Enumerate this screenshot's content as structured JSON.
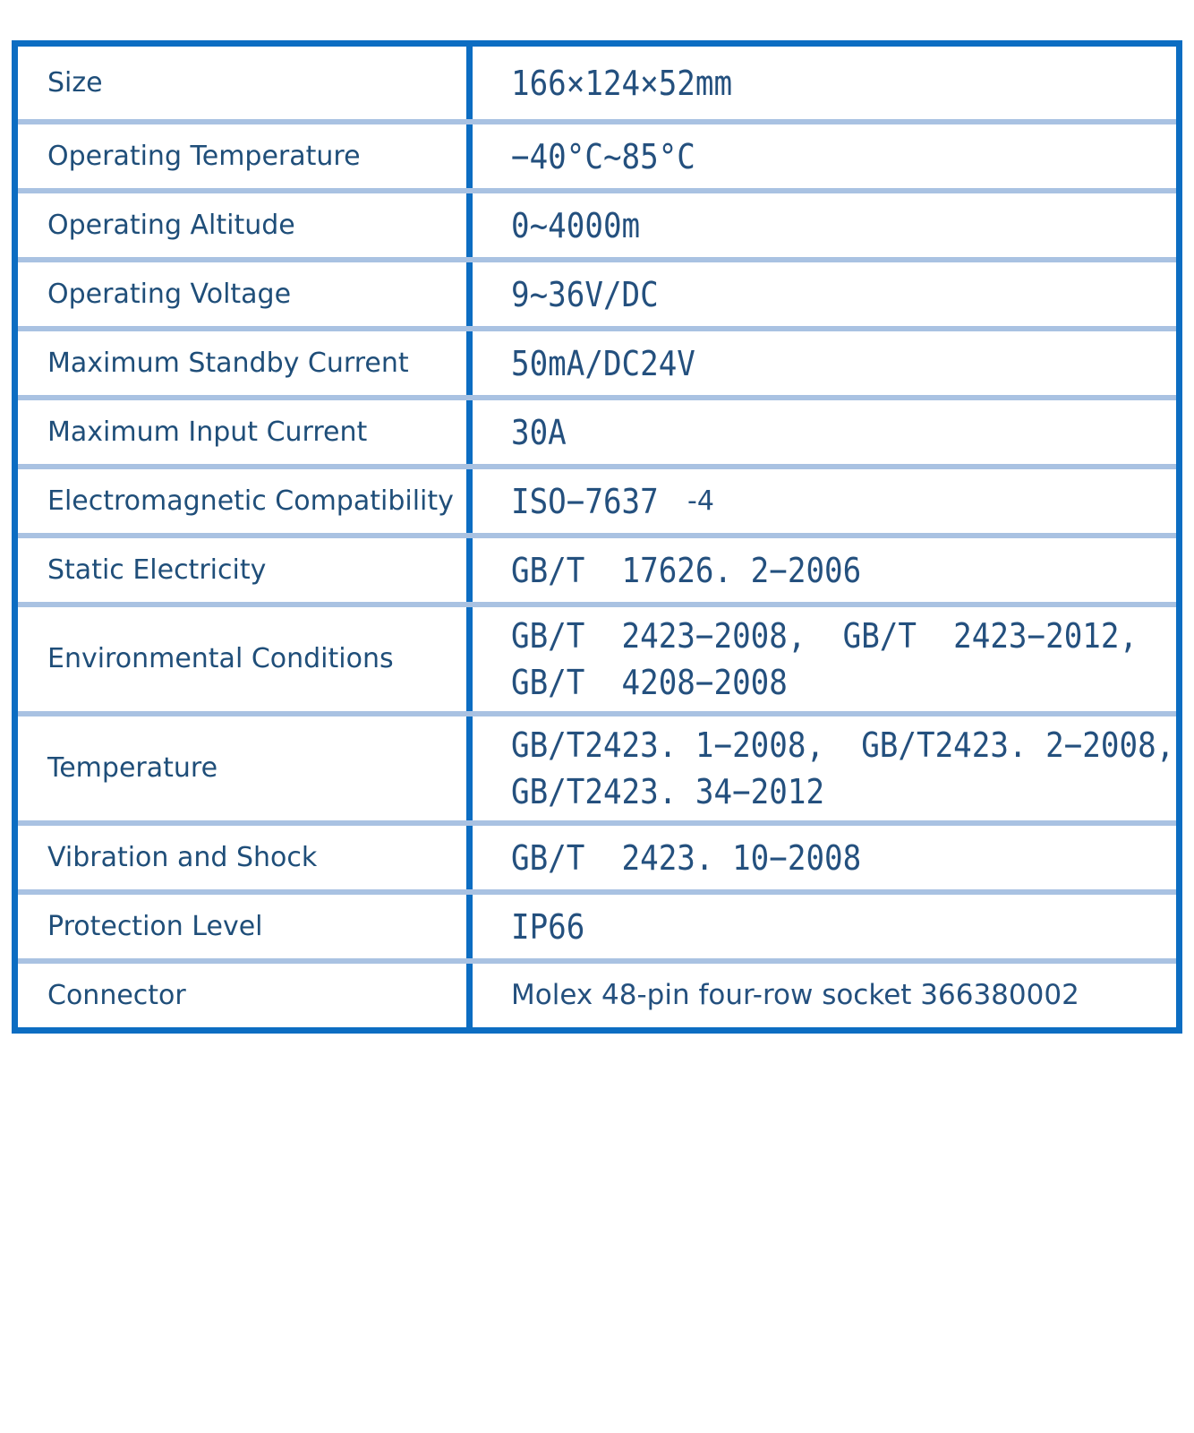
{
  "colors": {
    "border_strong": "#0c6dc2",
    "row_divider": "#a9c2e2",
    "label_text": "#1f4e79",
    "value_text": "#24507e",
    "page_bg": "#ffffff"
  },
  "table": {
    "rows": [
      {
        "label": "Size",
        "lines": [
          "166×124×52mm"
        ]
      },
      {
        "label": "Operating Temperature",
        "lines": [
          "−40°C~85°C"
        ]
      },
      {
        "label": "Operating Altitude",
        "lines": [
          "0~4000m"
        ]
      },
      {
        "label": "Operating Voltage",
        "lines": [
          "9~36V/DC"
        ]
      },
      {
        "label": "Maximum Standby Current",
        "lines": [
          "50mA/DC24V"
        ]
      },
      {
        "label": "Maximum Input Current",
        "lines": [
          "30A"
        ]
      },
      {
        "label": "Electromagnetic Compatibility",
        "lines": [
          "ISO−7637"
        ],
        "suffix": "-4"
      },
      {
        "label": "Static Electricity",
        "lines": [
          "GB/T  17626. 2−2006"
        ]
      },
      {
        "label": "Environmental Conditions",
        "lines": [
          "GB/T  2423−2008,  GB/T  2423−2012,",
          "GB/T  4208−2008"
        ]
      },
      {
        "label": "Temperature",
        "lines": [
          "GB/T2423. 1−2008,  GB/T2423. 2−2008,",
          "GB/T2423. 34−2012"
        ]
      },
      {
        "label": "Vibration and Shock",
        "lines": [
          "GB/T  2423. 10−2008"
        ]
      },
      {
        "label": "Protection Level",
        "lines": [
          "IP66"
        ]
      },
      {
        "label": "Connector",
        "lines": [
          "Molex 48-pin four-row socket 366380002"
        ],
        "variant": "sans"
      }
    ]
  }
}
